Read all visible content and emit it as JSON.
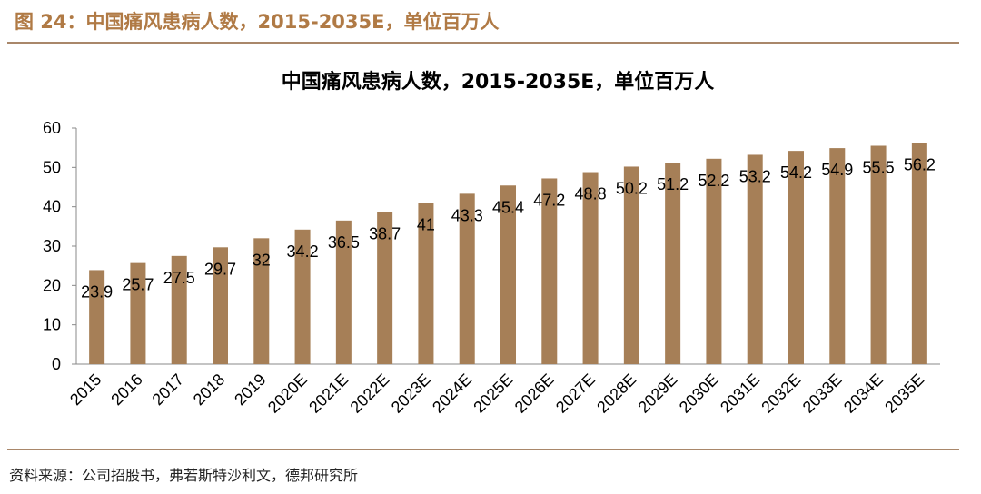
{
  "figure_title": "图 24：中国痛风患病人数，2015-2035E，单位百万人",
  "source_note": "资料来源：公司招股书，弗若斯特沙利文，德邦研究所",
  "colors": {
    "bar": "#a67f57",
    "rule": "#a9876a",
    "title": "#b07a45"
  },
  "chart_data": {
    "type": "bar",
    "title": "中国痛风患病人数，2015-2035E，单位百万人",
    "xlabel": "",
    "ylabel": "",
    "categories": [
      "2015",
      "2016",
      "2017",
      "2018",
      "2019",
      "2020E",
      "2021E",
      "2022E",
      "2023E",
      "2024E",
      "2025E",
      "2026E",
      "2027E",
      "2028E",
      "2029E",
      "2030E",
      "2031E",
      "2032E",
      "2033E",
      "2034E",
      "2035E"
    ],
    "values": [
      23.9,
      25.7,
      27.5,
      29.7,
      32,
      34.2,
      36.5,
      38.7,
      41,
      43.3,
      45.4,
      47.2,
      48.8,
      50.2,
      51.2,
      52.2,
      53.2,
      54.2,
      54.9,
      55.5,
      56.2
    ],
    "ylim": [
      0,
      60
    ],
    "yticks": [
      0,
      10,
      20,
      30,
      40,
      50,
      60
    ],
    "grid": false,
    "legend": "none"
  }
}
